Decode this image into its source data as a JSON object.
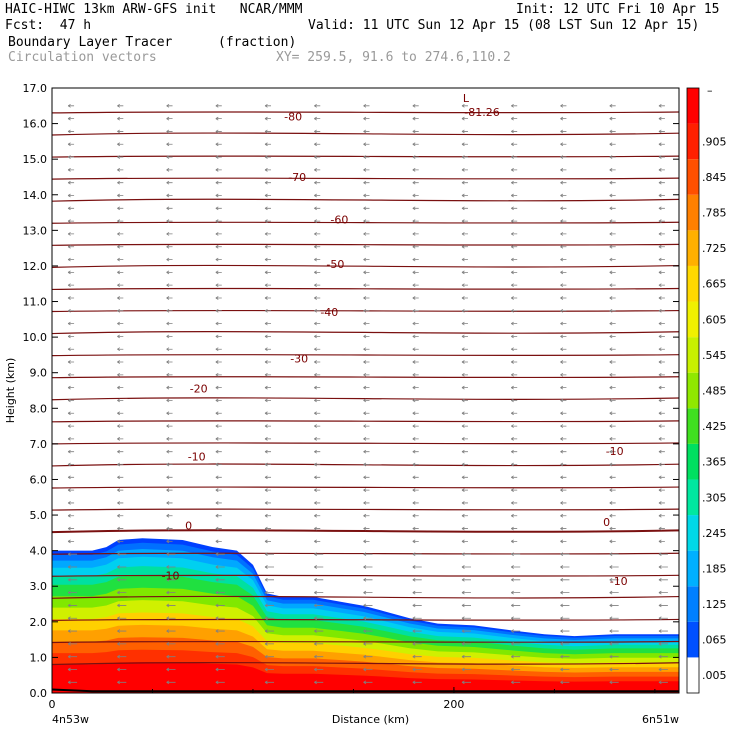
{
  "header": {
    "title_left": "HAIC-HIWC 13km ARW-GFS init   NCAR/MMM",
    "init": "Init: 12 UTC Fri 10 Apr 15",
    "fcst": "Fcst:  47 h",
    "valid": "Valid: 11 UTC Sun 12 Apr 15 (08 LST Sun 12 Apr 15)",
    "field1": "Boundary Layer Tracer",
    "field1_units": "(fraction)",
    "field2": "Circulation vectors",
    "xy": "XY= 259.5, 91.6 to 274.6,110.2"
  },
  "chart_data": {
    "type": "heatmap",
    "xlabel": "Distance (km)",
    "ylabel": "Height (km)",
    "ylim": [
      0,
      17
    ],
    "xlim": [
      0,
      312
    ],
    "y_ticks": [
      "0.0",
      "1.0",
      "2.0",
      "3.0",
      "4.0",
      "5.0",
      "6.0",
      "7.0",
      "8.0",
      "9.0",
      "10.0",
      "11.0",
      "12.0",
      "13.0",
      "14.0",
      "15.0",
      "16.0",
      "17.0"
    ],
    "x_ticks": [
      {
        "value": 0,
        "label": "0"
      },
      {
        "value": 200,
        "label": "200"
      }
    ],
    "x_end_labels": {
      "left": "4n53w",
      "right": "6n51w"
    },
    "colorbar": {
      "levels": [
        ".005",
        ".065",
        ".125",
        ".185",
        ".245",
        ".305",
        ".365",
        ".425",
        ".485",
        ".545",
        ".605",
        ".665",
        ".725",
        ".785",
        ".845",
        ".905"
      ],
      "top_label": "–",
      "colors": [
        "#ffffff",
        "#0050ff",
        "#0080ff",
        "#00b0ff",
        "#00d8e8",
        "#00e8a0",
        "#00e060",
        "#40e020",
        "#90e800",
        "#c8f000",
        "#f0f000",
        "#ffd800",
        "#ffb000",
        "#ff8000",
        "#ff5000",
        "#ff2000",
        "#ff0000"
      ]
    },
    "tracer_top_km": [
      [
        0,
        4.0
      ],
      [
        20,
        4.0
      ],
      [
        27,
        4.1
      ],
      [
        33,
        4.3
      ],
      [
        45,
        4.35
      ],
      [
        65,
        4.3
      ],
      [
        80,
        4.1
      ],
      [
        92,
        4.0
      ],
      [
        100,
        3.6
      ],
      [
        107,
        2.8
      ],
      [
        115,
        2.7
      ],
      [
        130,
        2.7
      ],
      [
        145,
        2.55
      ],
      [
        155,
        2.45
      ],
      [
        165,
        2.3
      ],
      [
        178,
        2.1
      ],
      [
        192,
        1.95
      ],
      [
        210,
        1.9
      ],
      [
        230,
        1.75
      ],
      [
        245,
        1.65
      ],
      [
        260,
        1.6
      ],
      [
        280,
        1.65
      ],
      [
        312,
        1.65
      ]
    ],
    "temperature_contours": {
      "levels_degC": [
        0,
        -10,
        -20,
        -30,
        -40,
        -50,
        -60,
        -70,
        -80
      ],
      "labels": [
        {
          "text": "0",
          "x": 68,
          "y": 4.7
        },
        {
          "text": "0",
          "x": 276,
          "y": 4.8
        },
        {
          "text": "-10",
          "x": 72,
          "y": 6.65
        },
        {
          "text": "-10",
          "x": 280,
          "y": 6.8
        },
        {
          "text": "-10",
          "x": 59,
          "y": 3.3
        },
        {
          "text": "-10",
          "x": 282,
          "y": 3.15
        },
        {
          "text": "-20",
          "x": 73,
          "y": 8.55
        },
        {
          "text": "-30",
          "x": 123,
          "y": 9.4
        },
        {
          "text": "-40",
          "x": 138,
          "y": 10.7
        },
        {
          "text": "-50",
          "x": 141,
          "y": 12.05
        },
        {
          "text": "-60",
          "x": 143,
          "y": 13.3
        },
        {
          "text": "-70",
          "x": 122,
          "y": 14.5
        },
        {
          "text": "-80",
          "x": 120,
          "y": 16.2
        }
      ],
      "min_label": {
        "text": "-81.26",
        "marker": "L",
        "x": 208,
        "y": 16.5
      }
    }
  }
}
